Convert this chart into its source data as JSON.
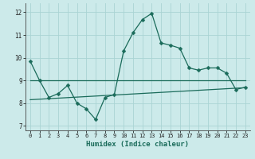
{
  "xlabel": "Humidex (Indice chaleur)",
  "background_color": "#cceaea",
  "grid_color": "#aad4d4",
  "line_color": "#1a6b5a",
  "xlim": [
    -0.5,
    23.5
  ],
  "ylim": [
    6.8,
    12.4
  ],
  "yticks": [
    7,
    8,
    9,
    10,
    11,
    12
  ],
  "xticks": [
    0,
    1,
    2,
    3,
    4,
    5,
    6,
    7,
    8,
    9,
    10,
    11,
    12,
    13,
    14,
    15,
    16,
    17,
    18,
    19,
    20,
    21,
    22,
    23
  ],
  "main_line_x": [
    0,
    1,
    2,
    3,
    4,
    5,
    6,
    7,
    8,
    9,
    10,
    11,
    12,
    13,
    14,
    15,
    16,
    17,
    18,
    19,
    20,
    21,
    22,
    23
  ],
  "main_line_y": [
    9.85,
    9.0,
    8.25,
    8.42,
    8.78,
    8.0,
    7.75,
    7.28,
    8.25,
    8.38,
    10.3,
    11.1,
    11.68,
    11.95,
    10.65,
    10.55,
    10.42,
    9.55,
    9.45,
    9.55,
    9.55,
    9.32,
    8.6,
    8.7
  ],
  "trend_line1_x": [
    0,
    23
  ],
  "trend_line1_y": [
    9.0,
    9.0
  ],
  "trend_line2_x": [
    0,
    23
  ],
  "trend_line2_y": [
    8.15,
    8.68
  ],
  "marker_size": 2.5,
  "line_width": 0.9
}
